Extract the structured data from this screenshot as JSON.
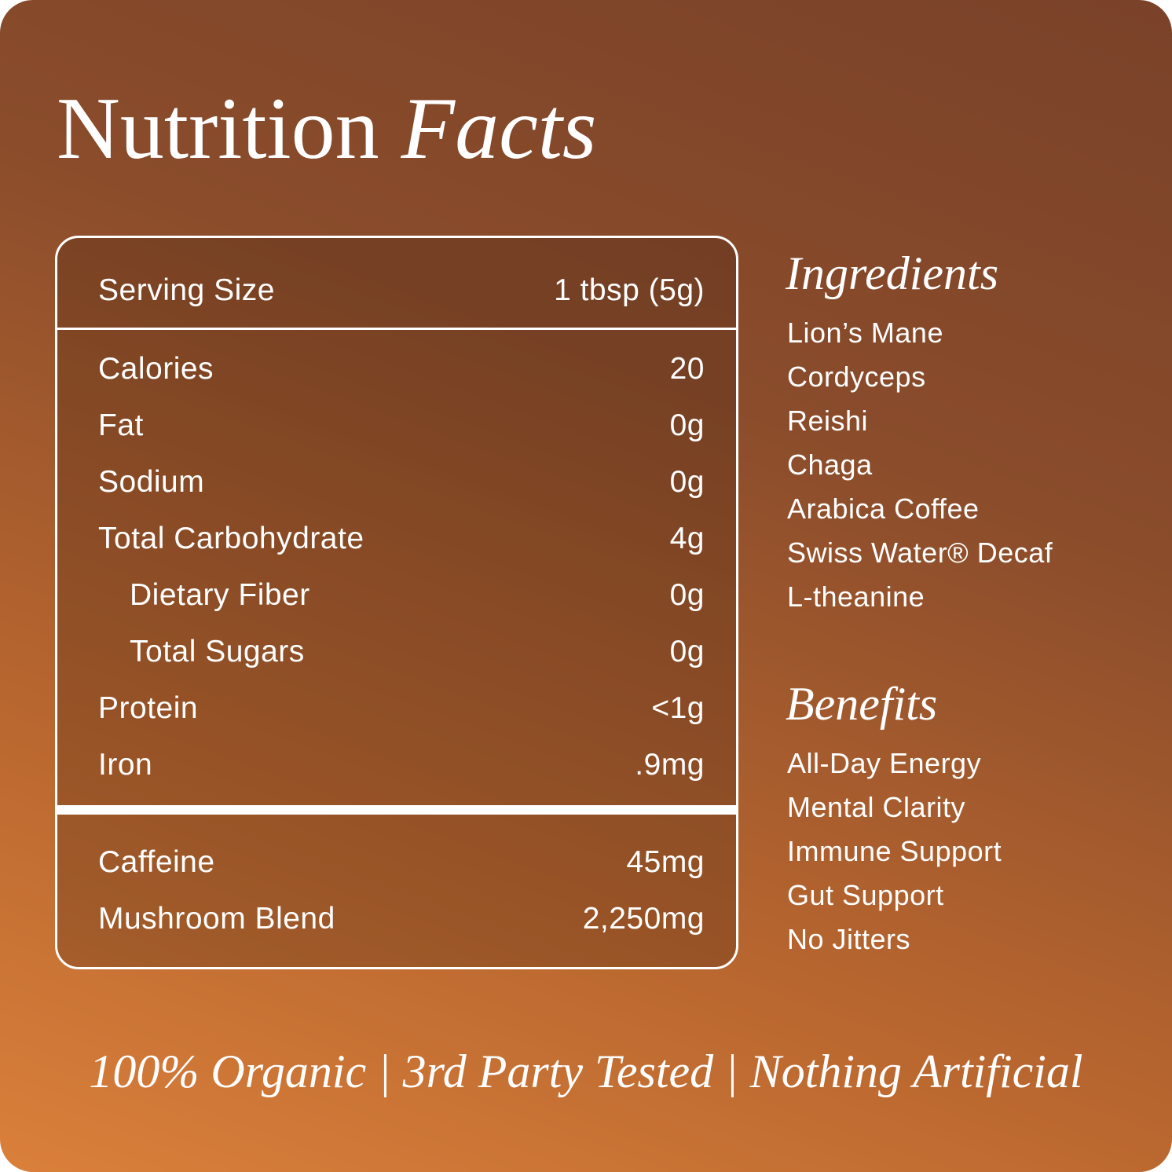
{
  "header": {
    "title": "Nutrition",
    "title_emphasis": "Facts"
  },
  "table": {
    "sections": [
      {
        "rows": [
          {
            "label": "Serving Size",
            "value": "1 tbsp (5g)"
          }
        ]
      },
      {
        "rows": [
          {
            "label": "Calories",
            "value": "20"
          },
          {
            "label": "Fat",
            "value": "0g"
          },
          {
            "label": "Sodium",
            "value": "0g"
          },
          {
            "label": "Total Carbohydrate",
            "value": "4g"
          },
          {
            "label": "Dietary Fiber",
            "value": "0g",
            "indent": true
          },
          {
            "label": "Total Sugars",
            "value": "0g",
            "indent": true
          },
          {
            "label": "Protein",
            "value": "<1g"
          },
          {
            "label": "Iron",
            "value": ".9mg"
          }
        ]
      },
      {
        "rows": [
          {
            "label": "Caffeine",
            "value": "45mg"
          },
          {
            "label": "Mushroom Blend",
            "value": "2,250mg"
          }
        ]
      }
    ]
  },
  "ingredients": {
    "heading": "Ingredients",
    "items": [
      "Lion’s Mane",
      "Cordyceps",
      "Reishi",
      "Chaga",
      "Arabica Coffee",
      "Swiss Water® Decaf",
      "L-theanine"
    ]
  },
  "benefits": {
    "heading": "Benefits",
    "items": [
      "All-Day Energy",
      "Mental Clarity",
      "Immune Support",
      "Gut Support",
      "No Jitters"
    ]
  },
  "footer": {
    "tagline": "100% Organic | 3rd Party Tested | Nothing Artificial"
  }
}
